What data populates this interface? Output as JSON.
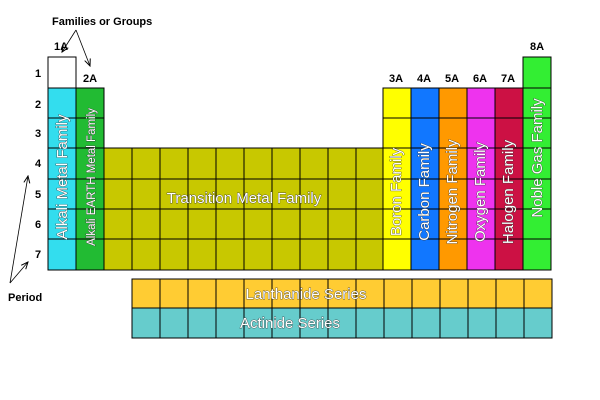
{
  "header": {
    "groups_label": "Families or Groups",
    "period_label": "Period"
  },
  "group_labels": [
    "1A",
    "2A",
    "3A",
    "4A",
    "5A",
    "6A",
    "7A",
    "8A"
  ],
  "period_labels": [
    "1",
    "2",
    "3",
    "4",
    "5",
    "6",
    "7"
  ],
  "families": {
    "alkali": {
      "label": "Alkali Metal Family",
      "color": "#33ddee"
    },
    "alkaline_earth": {
      "label": "Alkali EARTH Metal Family",
      "color": "#22bb33"
    },
    "transition": {
      "label": "Transition Metal Family",
      "color": "#c8c800"
    },
    "boron": {
      "label": "Boron Family",
      "color": "#ffff00"
    },
    "carbon": {
      "label": "Carbon Family",
      "color": "#1177ff"
    },
    "nitrogen": {
      "label": "Nitrogen Family",
      "color": "#ff9900"
    },
    "oxygen": {
      "label": "Oxygen Family",
      "color": "#ee33ee"
    },
    "halogen": {
      "label": "Halogen Family",
      "color": "#cc1144"
    },
    "noble_gas": {
      "label": "Noble Gas Family",
      "color": "#33ee33"
    }
  },
  "series": {
    "lanthanide": {
      "label": "Lanthanide Series",
      "color": "#ffcc33"
    },
    "actinide": {
      "label": "Actinide Series",
      "color": "#66cccc"
    }
  }
}
